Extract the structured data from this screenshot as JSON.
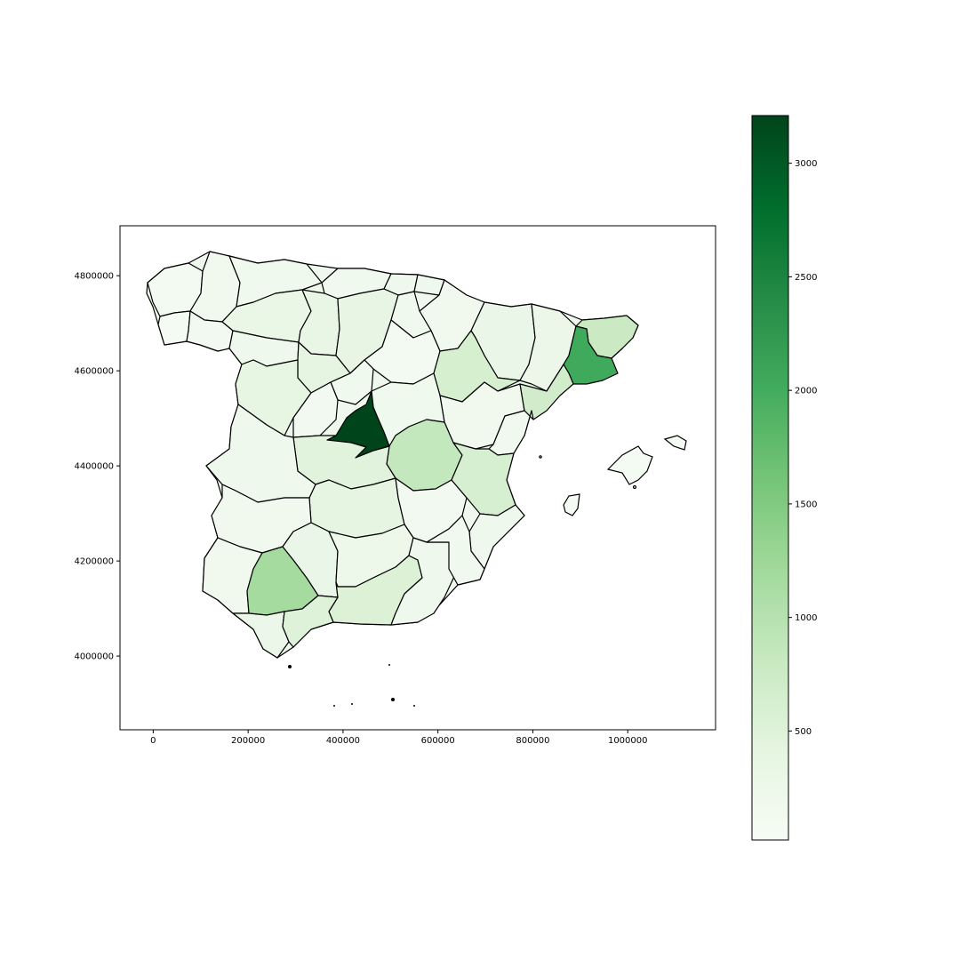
{
  "chart_data": {
    "type": "choropleth",
    "title": "",
    "xlabel": "",
    "ylabel": "",
    "map_projection_units": "UTM easting/northing (m)",
    "x_ticks": [
      0,
      200000,
      400000,
      600000,
      800000,
      1000000
    ],
    "y_ticks": [
      4000000,
      4200000,
      4400000,
      4600000,
      4800000
    ],
    "x_tick_labels": [
      "0",
      "200000",
      "400000",
      "600000",
      "800000",
      "1000000"
    ],
    "y_tick_labels": [
      "4000000",
      "4200000",
      "4400000",
      "4600000",
      "4800000"
    ],
    "xlim": [
      -70000,
      1185000
    ],
    "ylim": [
      3845000,
      4905000
    ],
    "colormap": "Greens",
    "colorbar": {
      "range": [
        20,
        3210
      ],
      "ticks": [
        500,
        1000,
        1500,
        2000,
        2500,
        3000
      ],
      "tick_labels": [
        "500",
        "1000",
        "1500",
        "2000",
        "2500",
        "3000"
      ],
      "placement": "right"
    },
    "colors": {
      "low": "#f7fcf5",
      "high": "#00441b",
      "stroke": "#000000"
    },
    "regions": [
      {
        "id": "madrid",
        "value": 3210
      },
      {
        "id": "barcelona",
        "value": 2050
      },
      {
        "id": "sevilla",
        "value": 1200
      },
      {
        "id": "cuenca",
        "value": 760
      },
      {
        "id": "girona",
        "value": 640
      },
      {
        "id": "tarragona",
        "value": 560
      },
      {
        "id": "zaragoza",
        "value": 620
      },
      {
        "id": "valencia",
        "value": 560
      },
      {
        "id": "granada",
        "value": 520
      },
      {
        "id": "malaga",
        "value": 430
      },
      {
        "id": "toledo",
        "value": 420
      },
      {
        "id": "ciudad-real",
        "value": 360
      },
      {
        "id": "jaen",
        "value": 200
      },
      {
        "id": "cadiz",
        "value": 260
      },
      {
        "id": "burgos",
        "value": 230
      },
      {
        "id": "palencia",
        "value": 220
      },
      {
        "id": "caceres",
        "value": 230
      },
      {
        "id": "salamanca",
        "value": 250
      },
      {
        "id": "lleida",
        "value": 180
      },
      {
        "id": "huesca",
        "value": 160
      },
      {
        "id": "soria",
        "value": 120
      },
      {
        "id": "leon",
        "value": 170
      },
      {
        "id": "badajoz",
        "value": 130
      },
      {
        "id": "albacete",
        "value": 120
      }
    ]
  }
}
